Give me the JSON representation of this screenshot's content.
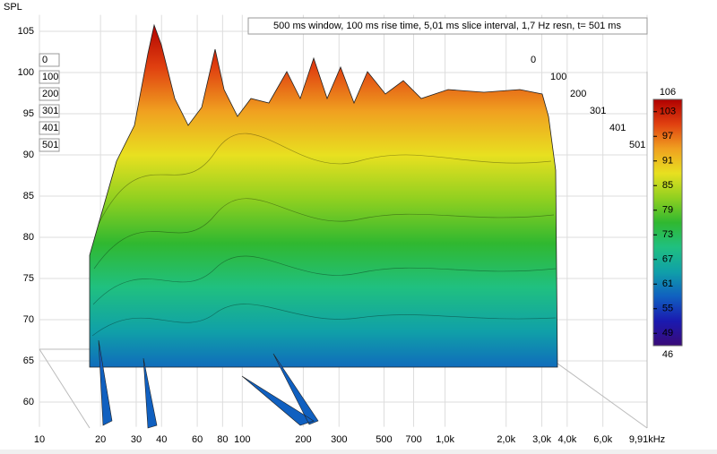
{
  "chart_data": {
    "type": "waterfall",
    "y_label": "SPL",
    "annotation": "500 ms window, 100 ms rise time, 5,01 ms slice interval, 1,7 Hz resn, t= 501 ms",
    "ylim": [
      57,
      107
    ],
    "yticks": [
      60,
      65,
      70,
      75,
      80,
      85,
      90,
      95,
      100,
      105
    ],
    "xlim": [
      10,
      9910
    ],
    "log_x": true,
    "xticks": [
      10,
      20,
      30,
      40,
      60,
      80,
      100,
      200,
      300,
      500,
      700,
      {
        "value": 1000,
        "label": "1,0k"
      },
      {
        "value": 2000,
        "label": "2,0k"
      },
      {
        "value": 3000,
        "label": "3,0k"
      },
      {
        "value": 4000,
        "label": "4,0k"
      },
      {
        "value": 6000,
        "label": "6,0k"
      },
      {
        "value": 9910,
        "label": "9,91kHz"
      }
    ],
    "slices": [
      0,
      100,
      200,
      301,
      401,
      501
    ],
    "clim": [
      46,
      106
    ],
    "cticks": [
      49,
      55,
      61,
      67,
      73,
      79,
      85,
      91,
      97,
      103
    ],
    "colormap": [
      "#3a0a78",
      "#1a1ab0",
      "#1060c0",
      "#10a0a8",
      "#20c080",
      "#30b830",
      "#90d020",
      "#e8e020",
      "#f0a020",
      "#e04010",
      "#b00000"
    ],
    "grid": true
  }
}
